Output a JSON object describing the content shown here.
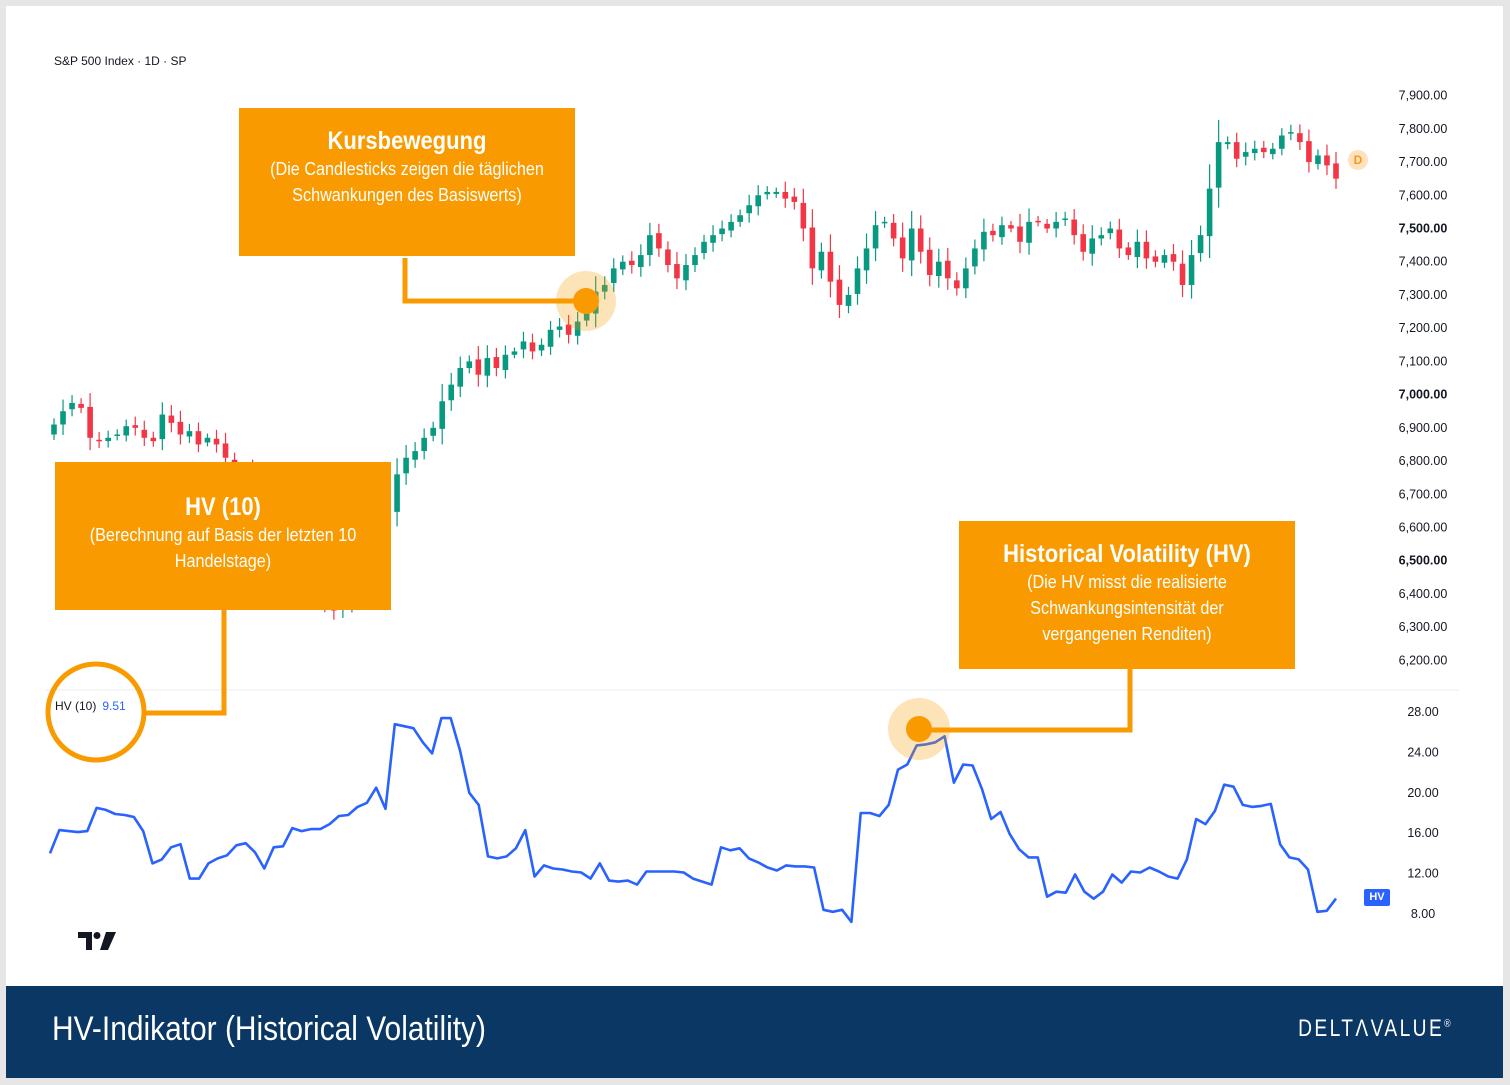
{
  "header": {
    "symbol_title": "S&P 500 Index · 1D · SP"
  },
  "callouts": {
    "kursbewegung": {
      "title": "Kursbewegung",
      "desc": "(Die Candlesticks zeigen die täglichen Schwankungen des Basiswerts)"
    },
    "hv10": {
      "title": "HV (10)",
      "desc": "(Berechnung auf Basis der letzten 10 Handelstage)"
    },
    "hv": {
      "title": "Historical Volatility (HV)",
      "desc": "(Die HV misst die realisierte Schwankungsintensität der vergangenen Renditen)"
    }
  },
  "indicator": {
    "label": "HV (10)",
    "value": "9.51",
    "badge": "HV"
  },
  "price_badge": "D",
  "footer": {
    "title": "HV-Indikator (Historical Volatility)",
    "brand": "DELTΛVALUE",
    "brand_mark": "®"
  },
  "colors": {
    "up": "#089981",
    "down": "#f23645",
    "hv_line": "#2962ff",
    "accent": "#f99a00",
    "footer_bg": "#0a3763"
  },
  "chart_data": [
    {
      "type": "candlestick",
      "title": "S&P 500 Index · 1D · SP",
      "ylim": [
        6150,
        7950
      ],
      "yticks": [
        "7,900.00",
        "7,800.00",
        "7,700.00",
        "7,600.00",
        "7,500.00",
        "7,400.00",
        "7,300.00",
        "7,200.00",
        "7,100.00",
        "7,000.00",
        "6,900.00",
        "6,800.00",
        "6,700.00",
        "6,600.00",
        "6,500.00",
        "6,400.00",
        "6,300.00",
        "6,200.00"
      ],
      "ytick_values": [
        7900,
        7800,
        7700,
        7600,
        7500,
        7400,
        7300,
        7200,
        7100,
        7000,
        6900,
        6800,
        6700,
        6600,
        6500,
        6400,
        6300,
        6200
      ],
      "ytick_major": [
        7500,
        7000,
        6500
      ],
      "close": [
        6910,
        6950,
        6975,
        6960,
        6870,
        6860,
        6870,
        6880,
        6905,
        6900,
        6870,
        6860,
        6940,
        6915,
        6880,
        6890,
        6850,
        6870,
        6850,
        6810,
        6780,
        6760,
        6720,
        6700,
        6650,
        6580,
        6540,
        6500,
        6470,
        6430,
        6380,
        6350,
        6400,
        6530,
        6580,
        6600,
        6620,
        6650,
        6760,
        6810,
        6830,
        6870,
        6900,
        6980,
        7030,
        7080,
        7100,
        7060,
        7110,
        7080,
        7120,
        7130,
        7160,
        7130,
        7150,
        7195,
        7205,
        7180,
        7220,
        7250,
        7310,
        7330,
        7380,
        7400,
        7390,
        7420,
        7480,
        7440,
        7390,
        7350,
        7390,
        7420,
        7460,
        7480,
        7500,
        7520,
        7540,
        7570,
        7600,
        7610,
        7610,
        7590,
        7580,
        7500,
        7380,
        7430,
        7340,
        7270,
        7300,
        7380,
        7440,
        7510,
        7520,
        7470,
        7410,
        7500,
        7430,
        7360,
        7400,
        7350,
        7320,
        7380,
        7440,
        7490,
        7480,
        7510,
        7500,
        7460,
        7520,
        7520,
        7500,
        7520,
        7530,
        7480,
        7430,
        7470,
        7480,
        7500,
        7440,
        7420,
        7460,
        7410,
        7400,
        7420,
        7400,
        7330,
        7420,
        7480,
        7620,
        7760,
        7760,
        7710,
        7730,
        7740,
        7730,
        7740,
        7780,
        7790,
        7760,
        7700,
        7720,
        7690,
        7650
      ]
    },
    {
      "type": "line",
      "series": [
        {
          "name": "HV (10)",
          "values": [
            14,
            16.3,
            16.2,
            16.1,
            16.2,
            18.5,
            18.3,
            17.9,
            17.8,
            17.6,
            16.2,
            13,
            13.4,
            14.6,
            14.9,
            11.5,
            11.5,
            13,
            13.5,
            13.8,
            14.8,
            15,
            14.1,
            12.5,
            14.6,
            14.7,
            16.5,
            16.2,
            16.4,
            16.4,
            16.9,
            17.7,
            17.8,
            18.6,
            19,
            20.5,
            18.4,
            26.8,
            26.6,
            26.4,
            25,
            23.9,
            27.4,
            27.4,
            24.2,
            20,
            18.8,
            13.7,
            13.5,
            13.7,
            14.5,
            16.3,
            11.7,
            12.8,
            12.5,
            12.4,
            12.2,
            12.1,
            11.5,
            13,
            11.3,
            11.2,
            11.3,
            10.9,
            12.2,
            12.2,
            12.2,
            12.2,
            12.1,
            11.5,
            11.2,
            10.9,
            14.6,
            14.3,
            14.5,
            13.5,
            13.1,
            12.6,
            12.3,
            12.8,
            12.7,
            12.7,
            12.6,
            8.4,
            8.2,
            8.4,
            7.2,
            18,
            18,
            17.7,
            18.8,
            22.3,
            22.8,
            24.7,
            24.8,
            25,
            25.6,
            21,
            22.8,
            22.7,
            20.4,
            17.4,
            18.1,
            15.9,
            14.4,
            13.6,
            13.6,
            9.7,
            10.2,
            10.1,
            11.9,
            10.2,
            9.5,
            10.2,
            11.9,
            11.1,
            12.2,
            12.1,
            12.6,
            12.2,
            11.7,
            11.5,
            13.4,
            17.4,
            16.9,
            18.2,
            20.8,
            20.6,
            18.8,
            18.6,
            18.7,
            18.9,
            14.9,
            13.6,
            13.4,
            12.4,
            8.2,
            8.3,
            9.51
          ]
        }
      ],
      "ylim": [
        6.5,
        28.8
      ],
      "yticks": [
        "28.00",
        "24.00",
        "20.00",
        "16.00",
        "12.00",
        "8.00"
      ],
      "ytick_values": [
        28,
        24,
        20,
        16,
        12,
        8
      ]
    }
  ]
}
